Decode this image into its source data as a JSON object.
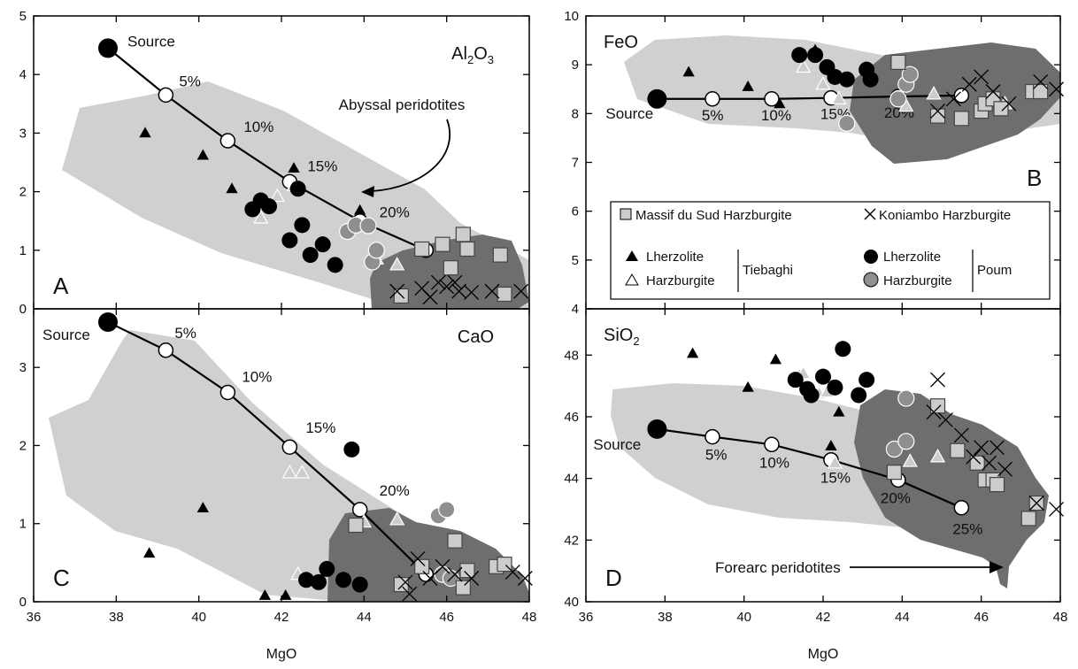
{
  "colors": {
    "abyssal_field": "#d0d0d0",
    "forearc_field": "#6e6e6e",
    "black": "#000000",
    "grey_marker": "#8f8f8f",
    "light_marker": "#cccccc"
  },
  "legend": {
    "massif_du_sud": "Massif du Sud Harzburgite",
    "koniambo": "Koniambo Harzburgite",
    "tiebaghi_lherzolite": "Lherzolite",
    "tiebaghi_harzburgite": "Harzburgite",
    "tiebaghi": "Tiebaghi",
    "poum_lherzolite": "Lherzolite",
    "poum_harzburgite": "Harzburgite",
    "poum": "Poum"
  },
  "chart_data": [
    {
      "id": "A",
      "type": "scatter",
      "panel_letter": "A",
      "oxide_label": "Al2O3",
      "xlabel": "",
      "xlim": [
        36,
        48
      ],
      "ylim": [
        0,
        5
      ],
      "xticks": [
        36,
        38,
        40,
        42,
        44,
        46,
        48
      ],
      "yticks": [
        0,
        1,
        2,
        3,
        4,
        5
      ],
      "grid": false,
      "melting_curve": {
        "source": [
          37.8,
          4.45
        ],
        "source_label": "Source",
        "points": [
          {
            "x": 39.2,
            "y": 3.65,
            "label": "5%"
          },
          {
            "x": 40.7,
            "y": 2.87,
            "label": "10%"
          },
          {
            "x": 42.2,
            "y": 2.17,
            "label": "15%"
          },
          {
            "x": 43.9,
            "y": 1.5,
            "label": "20%"
          },
          {
            "x": 45.5,
            "y": 1.0,
            "label": ""
          }
        ]
      },
      "annotation": "Abyssal peridotites",
      "series": [
        {
          "name": "Tiebaghi Lherzolite",
          "values": [
            [
              38.7,
              3.0
            ],
            [
              40.1,
              2.62
            ],
            [
              40.8,
              2.05
            ],
            [
              42.3,
              2.4
            ],
            [
              43.9,
              1.68
            ]
          ]
        },
        {
          "name": "Tiebaghi Harzburgite",
          "values": [
            [
              41.5,
              1.55
            ],
            [
              41.9,
              1.92
            ],
            [
              42.3,
              2.1
            ],
            [
              44.3,
              0.85
            ],
            [
              44.8,
              0.75
            ]
          ]
        },
        {
          "name": "Poum Lherzolite",
          "values": [
            [
              41.3,
              1.7
            ],
            [
              41.5,
              1.85
            ],
            [
              41.7,
              1.75
            ],
            [
              42.2,
              1.17
            ],
            [
              42.5,
              1.43
            ],
            [
              42.7,
              0.92
            ],
            [
              43.0,
              1.1
            ],
            [
              43.3,
              0.75
            ],
            [
              42.4,
              2.05
            ]
          ]
        },
        {
          "name": "Poum Harzburgite",
          "values": [
            [
              43.6,
              1.32
            ],
            [
              43.8,
              1.43
            ],
            [
              44.1,
              1.42
            ],
            [
              44.2,
              0.8
            ],
            [
              44.3,
              1.0
            ]
          ]
        },
        {
          "name": "Massif du Sud Harzburgite",
          "values": [
            [
              44.9,
              0.22
            ],
            [
              45.4,
              1.02
            ],
            [
              45.9,
              1.1
            ],
            [
              46.1,
              0.7
            ],
            [
              46.4,
              1.27
            ],
            [
              46.5,
              1.02
            ],
            [
              47.3,
              0.92
            ],
            [
              47.4,
              0.25
            ]
          ]
        },
        {
          "name": "Koniambo Harzburgite",
          "values": [
            [
              44.8,
              0.3
            ],
            [
              45.4,
              0.35
            ],
            [
              45.6,
              0.2
            ],
            [
              45.8,
              0.45
            ],
            [
              46.0,
              0.38
            ],
            [
              46.2,
              0.45
            ],
            [
              46.3,
              0.3
            ],
            [
              46.6,
              0.28
            ],
            [
              47.1,
              0.3
            ],
            [
              47.8,
              0.3
            ]
          ]
        }
      ]
    },
    {
      "id": "B",
      "type": "scatter",
      "panel_letter": "B",
      "oxide_label": "FeO",
      "xlabel": "",
      "xlim": [
        36,
        48
      ],
      "ylim": [
        4,
        10
      ],
      "xticks": [
        36,
        38,
        40,
        42,
        44,
        46,
        48
      ],
      "yticks": [
        4,
        5,
        6,
        7,
        8,
        9,
        10
      ],
      "grid": false,
      "melting_curve": {
        "source": [
          37.8,
          8.3
        ],
        "source_label": "Source",
        "points": [
          {
            "x": 39.2,
            "y": 8.3,
            "label": "5%"
          },
          {
            "x": 40.7,
            "y": 8.3,
            "label": "10%"
          },
          {
            "x": 42.2,
            "y": 8.32,
            "label": "15%"
          },
          {
            "x": 43.9,
            "y": 8.35,
            "label": "20%"
          },
          {
            "x": 45.5,
            "y": 8.37,
            "label": ""
          }
        ]
      },
      "annotation": "",
      "series": [
        {
          "name": "Tiebaghi Lherzolite",
          "values": [
            [
              38.6,
              8.85
            ],
            [
              40.1,
              8.55
            ],
            [
              41.8,
              9.3
            ],
            [
              40.9,
              8.2
            ]
          ]
        },
        {
          "name": "Tiebaghi Harzburgite",
          "values": [
            [
              41.5,
              8.95
            ],
            [
              42.0,
              8.6
            ],
            [
              42.4,
              8.3
            ],
            [
              44.1,
              8.15
            ],
            [
              44.8,
              8.4
            ],
            [
              46.6,
              8.2
            ]
          ]
        },
        {
          "name": "Poum Lherzolite",
          "values": [
            [
              41.4,
              9.2
            ],
            [
              41.8,
              9.2
            ],
            [
              42.1,
              8.95
            ],
            [
              42.3,
              8.75
            ],
            [
              42.6,
              8.7
            ],
            [
              43.1,
              8.9
            ],
            [
              43.2,
              8.7
            ]
          ]
        },
        {
          "name": "Poum Harzburgite",
          "values": [
            [
              42.6,
              7.8
            ],
            [
              43.9,
              8.3
            ],
            [
              44.1,
              8.6
            ],
            [
              44.2,
              8.8
            ]
          ]
        },
        {
          "name": "Massif du Sud Harzburgite",
          "values": [
            [
              43.9,
              9.05
            ],
            [
              44.9,
              7.95
            ],
            [
              45.5,
              7.9
            ],
            [
              46.0,
              8.05
            ],
            [
              46.1,
              8.2
            ],
            [
              46.3,
              8.3
            ],
            [
              46.5,
              8.1
            ],
            [
              47.3,
              8.45
            ],
            [
              47.5,
              8.45
            ]
          ]
        },
        {
          "name": "Koniambo Harzburgite",
          "values": [
            [
              44.9,
              8.05
            ],
            [
              45.3,
              8.3
            ],
            [
              45.7,
              8.6
            ],
            [
              46.0,
              8.75
            ],
            [
              46.3,
              8.45
            ],
            [
              46.7,
              8.2
            ],
            [
              47.5,
              8.65
            ],
            [
              47.9,
              8.5
            ]
          ]
        }
      ]
    },
    {
      "id": "C",
      "type": "scatter",
      "panel_letter": "C",
      "oxide_label": "CaO",
      "xlabel": "MgO",
      "xlim": [
        36,
        48
      ],
      "ylim": [
        0,
        3.75
      ],
      "xticks": [
        36,
        38,
        40,
        42,
        44,
        46,
        48
      ],
      "yticks": [
        0,
        1,
        2,
        3
      ],
      "grid": false,
      "melting_curve": {
        "source": [
          37.8,
          3.58
        ],
        "source_label": "Source",
        "points": [
          {
            "x": 39.2,
            "y": 3.22,
            "label": "5%"
          },
          {
            "x": 40.7,
            "y": 2.68,
            "label": "10%"
          },
          {
            "x": 42.2,
            "y": 1.98,
            "label": "15%"
          },
          {
            "x": 43.9,
            "y": 1.18,
            "label": "20%"
          },
          {
            "x": 45.5,
            "y": 0.35,
            "label": ""
          }
        ]
      },
      "annotation": "",
      "series": [
        {
          "name": "Tiebaghi Lherzolite",
          "values": [
            [
              38.8,
              0.62
            ],
            [
              40.1,
              1.2
            ],
            [
              41.6,
              0.08
            ],
            [
              42.1,
              0.08
            ]
          ]
        },
        {
          "name": "Tiebaghi Harzburgite",
          "values": [
            [
              42.2,
              1.65
            ],
            [
              42.5,
              1.65
            ],
            [
              42.4,
              0.35
            ],
            [
              44.0,
              1.02
            ],
            [
              44.8,
              1.05
            ]
          ]
        },
        {
          "name": "Poum Lherzolite",
          "values": [
            [
              42.6,
              0.28
            ],
            [
              42.9,
              0.25
            ],
            [
              43.1,
              0.42
            ],
            [
              43.5,
              0.28
            ],
            [
              43.7,
              1.95
            ],
            [
              43.9,
              0.22
            ]
          ]
        },
        {
          "name": "Poum Harzburgite",
          "values": [
            [
              45.8,
              1.1
            ],
            [
              46.0,
              1.18
            ],
            [
              45.9,
              0.35
            ],
            [
              46.1,
              0.3
            ]
          ]
        },
        {
          "name": "Massif du Sud Harzburgite",
          "values": [
            [
              43.8,
              0.98
            ],
            [
              44.9,
              0.22
            ],
            [
              45.4,
              0.45
            ],
            [
              46.2,
              0.78
            ],
            [
              46.5,
              0.4
            ],
            [
              46.4,
              0.18
            ],
            [
              47.2,
              0.45
            ],
            [
              47.4,
              0.48
            ]
          ]
        },
        {
          "name": "Koniambo Harzburgite",
          "values": [
            [
              45.0,
              0.25
            ],
            [
              45.3,
              0.55
            ],
            [
              45.6,
              0.3
            ],
            [
              45.9,
              0.45
            ],
            [
              46.2,
              0.35
            ],
            [
              46.6,
              0.3
            ],
            [
              47.6,
              0.38
            ],
            [
              47.9,
              0.3
            ],
            [
              45.1,
              0.1
            ]
          ]
        }
      ]
    },
    {
      "id": "D",
      "type": "scatter",
      "panel_letter": "D",
      "oxide_label": "SiO2",
      "xlabel": "MgO",
      "xlim": [
        36,
        48
      ],
      "ylim": [
        40,
        49.5
      ],
      "xticks": [
        36,
        38,
        40,
        42,
        44,
        46,
        48
      ],
      "yticks": [
        40,
        42,
        44,
        46,
        48
      ],
      "grid": false,
      "melting_curve": {
        "source": [
          37.8,
          45.6
        ],
        "source_label": "Source",
        "points": [
          {
            "x": 39.2,
            "y": 45.35,
            "label": "5%"
          },
          {
            "x": 40.7,
            "y": 45.1,
            "label": "10%"
          },
          {
            "x": 42.2,
            "y": 44.6,
            "label": "15%"
          },
          {
            "x": 43.9,
            "y": 43.95,
            "label": "20%"
          },
          {
            "x": 45.5,
            "y": 43.05,
            "label": "25%"
          }
        ]
      },
      "annotation": "Forearc peridotites",
      "series": [
        {
          "name": "Tiebaghi Lherzolite",
          "values": [
            [
              38.7,
              48.05
            ],
            [
              40.1,
              46.95
            ],
            [
              40.8,
              47.85
            ],
            [
              42.2,
              45.05
            ],
            [
              42.4,
              46.15
            ]
          ]
        },
        {
          "name": "Tiebaghi Harzburgite",
          "values": [
            [
              41.4,
              47.35
            ],
            [
              41.5,
              47.4
            ],
            [
              41.9,
              46.75
            ],
            [
              42.1,
              46.8
            ],
            [
              42.3,
              44.5
            ],
            [
              44.2,
              44.55
            ],
            [
              44.9,
              44.7
            ]
          ]
        },
        {
          "name": "Poum Lherzolite",
          "values": [
            [
              41.3,
              47.2
            ],
            [
              41.6,
              46.9
            ],
            [
              41.7,
              46.7
            ],
            [
              42.0,
              47.3
            ],
            [
              42.3,
              46.95
            ],
            [
              42.5,
              48.2
            ],
            [
              42.9,
              46.7
            ],
            [
              43.1,
              47.2
            ]
          ]
        },
        {
          "name": "Poum Harzburgite",
          "values": [
            [
              43.8,
              44.95
            ],
            [
              44.1,
              46.6
            ],
            [
              44.1,
              45.2
            ]
          ]
        },
        {
          "name": "Massif du Sud Harzburgite",
          "values": [
            [
              43.8,
              44.2
            ],
            [
              44.9,
              46.35
            ],
            [
              45.4,
              44.9
            ],
            [
              45.9,
              44.5
            ],
            [
              46.1,
              43.95
            ],
            [
              46.3,
              43.95
            ],
            [
              46.4,
              43.8
            ],
            [
              47.2,
              42.7
            ],
            [
              47.4,
              43.2
            ]
          ]
        },
        {
          "name": "Koniambo Harzburgite",
          "values": [
            [
              44.9,
              47.2
            ],
            [
              44.8,
              46.15
            ],
            [
              45.1,
              45.9
            ],
            [
              45.5,
              45.4
            ],
            [
              45.8,
              44.7
            ],
            [
              46.0,
              45.0
            ],
            [
              46.2,
              44.5
            ],
            [
              46.4,
              45.0
            ],
            [
              46.6,
              44.3
            ],
            [
              47.4,
              43.2
            ],
            [
              47.9,
              43.0
            ]
          ]
        }
      ]
    }
  ]
}
